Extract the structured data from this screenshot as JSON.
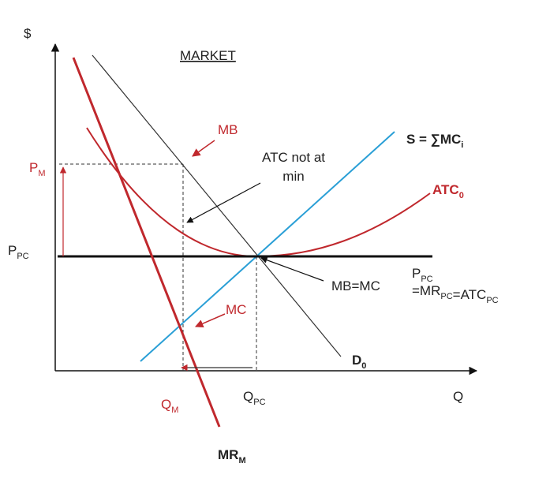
{
  "axes": {
    "y_label": "$",
    "x_label": "Q"
  },
  "title": "MARKET",
  "labels": {
    "mb": "MB",
    "atc_note": [
      "ATC not at",
      "min"
    ],
    "supply": [
      {
        "text": "S  = ∑MC",
        "sub": "i"
      }
    ],
    "p_m": [
      {
        "text": "P",
        "sub": "M"
      }
    ],
    "atc": [
      {
        "text": "ATC",
        "sub": "0"
      }
    ],
    "p_pc": [
      {
        "text": "P",
        "sub": "PC"
      }
    ],
    "mb_mc": "MB=MC",
    "price_line": [
      [
        {
          "text": "P",
          "sub": "PC"
        }
      ],
      [
        {
          "text": "=MR",
          "sub": "PC"
        },
        {
          "text": "=ATC",
          "sub": "PC"
        }
      ]
    ],
    "mc": "MC",
    "demand": [
      {
        "text": "D",
        "sub": "0"
      }
    ],
    "q_m": [
      {
        "text": "Q",
        "sub": "M"
      }
    ],
    "q_pc": [
      {
        "text": "Q",
        "sub": "PC"
      }
    ],
    "mr": [
      {
        "text": "MR",
        "sub": "M"
      }
    ]
  }
}
